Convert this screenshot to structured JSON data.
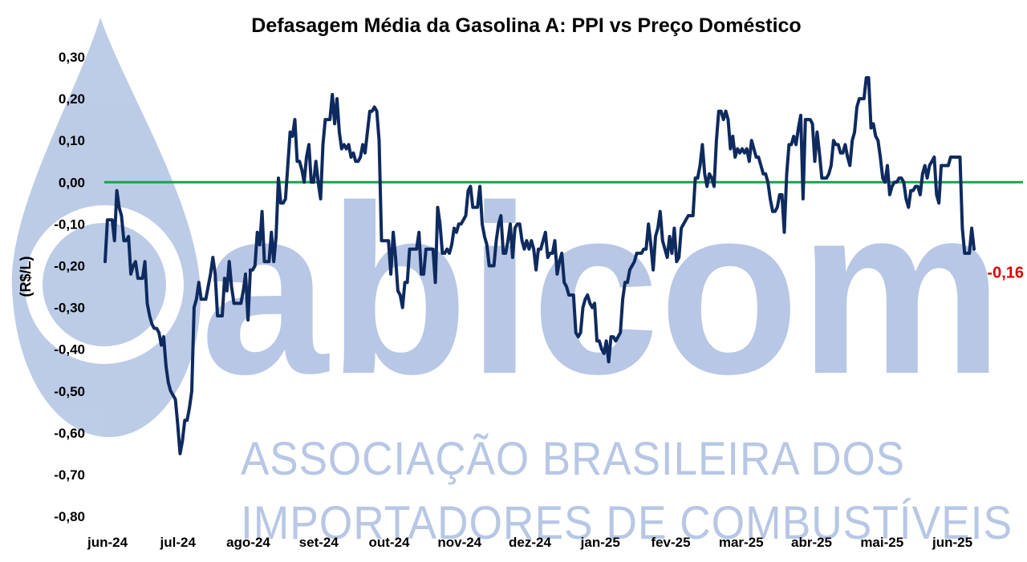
{
  "chart_data": {
    "type": "line",
    "title": "Defasagem Média da Gasolina A: PPI vs Preço Doméstico",
    "ylabel": "(R$/L)",
    "xlabel": "",
    "ylim": [
      -0.8,
      0.3
    ],
    "yticks": [
      "0,30",
      "0,20",
      "0,10",
      "0,00",
      "-0,10",
      "-0,20",
      "-0,30",
      "-0,40",
      "-0,50",
      "-0,60",
      "-0,70",
      "-0,80"
    ],
    "ytick_values": [
      0.3,
      0.2,
      0.1,
      0.0,
      -0.1,
      -0.2,
      -0.3,
      -0.4,
      -0.5,
      -0.6,
      -0.7,
      -0.8
    ],
    "xticks": [
      "jun-24",
      "jul-24",
      "ago-24",
      "set-24",
      "out-24",
      "nov-24",
      "dez-24",
      "jan-25",
      "fev-25",
      "mar-25",
      "abr-25",
      "mai-25",
      "jun-25"
    ],
    "reference_line": {
      "y": 0.0,
      "color": "#1aa34a"
    },
    "series": [
      {
        "color": "#0e2a5e",
        "values": [
          -0.19,
          -0.09,
          -0.09,
          -0.09,
          -0.14,
          -0.02,
          -0.06,
          -0.08,
          -0.14,
          -0.14,
          -0.13,
          -0.22,
          -0.2,
          -0.19,
          -0.23,
          -0.23,
          -0.23,
          -0.19,
          -0.29,
          -0.32,
          -0.34,
          -0.35,
          -0.35,
          -0.36,
          -0.39,
          -0.37,
          -0.44,
          -0.48,
          -0.5,
          -0.51,
          -0.52,
          -0.58,
          -0.65,
          -0.62,
          -0.57,
          -0.57,
          -0.54,
          -0.5,
          -0.3,
          -0.28,
          -0.24,
          -0.28,
          -0.28,
          -0.28,
          -0.25,
          -0.22,
          -0.18,
          -0.22,
          -0.32,
          -0.32,
          -0.32,
          -0.23,
          -0.26,
          -0.19,
          -0.25,
          -0.29,
          -0.29,
          -0.29,
          -0.29,
          -0.26,
          -0.22,
          -0.33,
          -0.21,
          -0.21,
          -0.2,
          -0.12,
          -0.15,
          -0.07,
          -0.19,
          -0.19,
          -0.19,
          -0.12,
          -0.19,
          -0.13,
          0.01,
          -0.05,
          -0.05,
          -0.04,
          0.04,
          0.12,
          0.11,
          0.15,
          0.05,
          0.05,
          0.03,
          0.0,
          0.06,
          0.09,
          0.0,
          0.0,
          0.05,
          0.0,
          -0.04,
          0.09,
          0.15,
          0.15,
          0.15,
          0.21,
          0.14,
          0.2,
          0.12,
          0.08,
          0.09,
          0.08,
          0.09,
          0.06,
          0.07,
          0.05,
          0.05,
          0.06,
          0.09,
          0.07,
          0.12,
          0.17,
          0.17,
          0.18,
          0.17,
          0.1,
          -0.14,
          -0.14,
          -0.14,
          -0.14,
          -0.22,
          -0.12,
          -0.18,
          -0.26,
          -0.27,
          -0.3,
          -0.24,
          -0.24,
          -0.16,
          -0.16,
          -0.16,
          -0.16,
          -0.12,
          -0.22,
          -0.22,
          -0.16,
          -0.16,
          -0.16,
          -0.16,
          -0.24,
          -0.06,
          -0.1,
          -0.17,
          -0.17,
          -0.16,
          -0.17,
          -0.15,
          -0.11,
          -0.12,
          -0.1,
          -0.1,
          -0.09,
          -0.08,
          -0.02,
          -0.01,
          -0.06,
          -0.06,
          -0.06,
          -0.01,
          -0.1,
          -0.13,
          -0.15,
          -0.2,
          -0.2,
          -0.2,
          -0.14,
          -0.1,
          -0.08,
          -0.17,
          -0.17,
          -0.14,
          -0.1,
          -0.18,
          -0.11,
          -0.1,
          -0.1,
          -0.14,
          -0.16,
          -0.14,
          -0.16,
          -0.14,
          -0.16,
          -0.21,
          -0.16,
          -0.16,
          -0.14,
          -0.12,
          -0.18,
          -0.17,
          -0.17,
          -0.14,
          -0.22,
          -0.19,
          -0.17,
          -0.24,
          -0.25,
          -0.27,
          -0.27,
          -0.27,
          -0.36,
          -0.37,
          -0.36,
          -0.3,
          -0.28,
          -0.27,
          -0.29,
          -0.3,
          -0.29,
          -0.38,
          -0.38,
          -0.4,
          -0.41,
          -0.38,
          -0.43,
          -0.37,
          -0.37,
          -0.38,
          -0.37,
          -0.36,
          -0.28,
          -0.24,
          -0.24,
          -0.21,
          -0.2,
          -0.19,
          -0.17,
          -0.17,
          -0.17,
          -0.16,
          -0.16,
          -0.1,
          -0.15,
          -0.21,
          -0.13,
          -0.11,
          -0.07,
          -0.14,
          -0.16,
          -0.18,
          -0.13,
          -0.17,
          -0.11,
          -0.19,
          -0.18,
          -0.11,
          -0.1,
          -0.09,
          -0.08,
          -0.08,
          -0.08,
          0.01,
          0.01,
          0.04,
          0.09,
          0.02,
          -0.01,
          0.02,
          0.01,
          -0.01,
          0.1,
          0.17,
          0.17,
          0.15,
          0.17,
          0.15,
          0.08,
          0.11,
          0.06,
          0.08,
          0.07,
          0.08,
          0.07,
          0.08,
          0.05,
          0.1,
          0.08,
          0.06,
          0.06,
          0.04,
          0.02,
          0.02,
          0.0,
          -0.04,
          -0.07,
          -0.07,
          -0.06,
          -0.03,
          -0.03,
          -0.12,
          0.02,
          0.09,
          0.09,
          0.11,
          0.09,
          0.13,
          0.16,
          -0.04,
          0.15,
          0.15,
          0.15,
          0.14,
          0.05,
          0.12,
          0.07,
          0.01,
          0.01,
          0.01,
          0.02,
          0.04,
          0.1,
          0.09,
          0.09,
          0.07,
          0.07,
          0.09,
          0.06,
          0.04,
          0.1,
          0.12,
          0.18,
          0.2,
          0.2,
          0.2,
          0.25,
          0.25,
          0.13,
          0.14,
          0.11,
          0.1,
          0.06,
          0.01,
          0.0,
          0.04,
          -0.03,
          -0.01,
          0.0,
          0.0,
          0.01,
          0.01,
          0.0,
          -0.04,
          -0.06,
          -0.02,
          -0.02,
          -0.01,
          -0.01,
          -0.03,
          0.02,
          0.04,
          0.01,
          0.04,
          0.05,
          0.06,
          -0.03,
          -0.05,
          0.04,
          0.04,
          0.04,
          0.04,
          0.06,
          0.06,
          0.06,
          0.06,
          0.06,
          -0.11,
          -0.17,
          -0.17,
          -0.17,
          -0.11,
          -0.16
        ]
      }
    ],
    "last_value_label": "-0,16",
    "last_value_color": "#e00000",
    "grid": false,
    "legend": "none"
  },
  "watermark": {
    "brand": "abicom",
    "line1": "ASSOCIAÇÃO BRASILEIRA DOS",
    "line2": "IMPORTADORES DE COMBUSTÍVEIS",
    "color": "#b4c5e4"
  }
}
